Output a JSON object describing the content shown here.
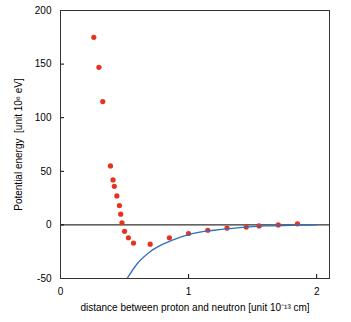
{
  "chart_data": {
    "type": "scatter",
    "x_label": "distance between proton and neutron [unit 10⁻¹³ cm]",
    "y_label": "Potential energy  [unit 10⁶ eV]",
    "xlim": [
      0,
      2.1
    ],
    "xticks": [
      0,
      1,
      2
    ],
    "ylim": [
      -50,
      200
    ],
    "yticks": [
      -50,
      0,
      50,
      100,
      150,
      200
    ],
    "grid": false,
    "hlines": [
      0
    ],
    "series": [
      {
        "type": "scatter",
        "color": "#e8321e",
        "marker": "circle",
        "x": [
          0.26,
          0.3,
          0.33,
          0.39,
          0.41,
          0.42,
          0.44,
          0.46,
          0.47,
          0.48,
          0.5,
          0.53,
          0.57,
          0.7,
          0.85,
          1.0,
          1.15,
          1.3,
          1.45,
          1.55,
          1.7,
          1.85
        ],
        "values": [
          175,
          147,
          115,
          55,
          42,
          36,
          27,
          18,
          10,
          2,
          -6,
          -12,
          -17,
          -18,
          -12,
          -8,
          -5,
          -3,
          -2,
          -1,
          0,
          1
        ]
      },
      {
        "type": "line",
        "color": "#2f6fc0",
        "line_style": "solid",
        "x": [
          0.52,
          0.6,
          0.7,
          0.8,
          0.9,
          1.0,
          1.2,
          1.4,
          1.6,
          1.8,
          2.0
        ],
        "values": [
          -50,
          -36,
          -25,
          -18,
          -13,
          -9,
          -5,
          -2.5,
          -1,
          -0.5,
          0
        ]
      }
    ]
  }
}
